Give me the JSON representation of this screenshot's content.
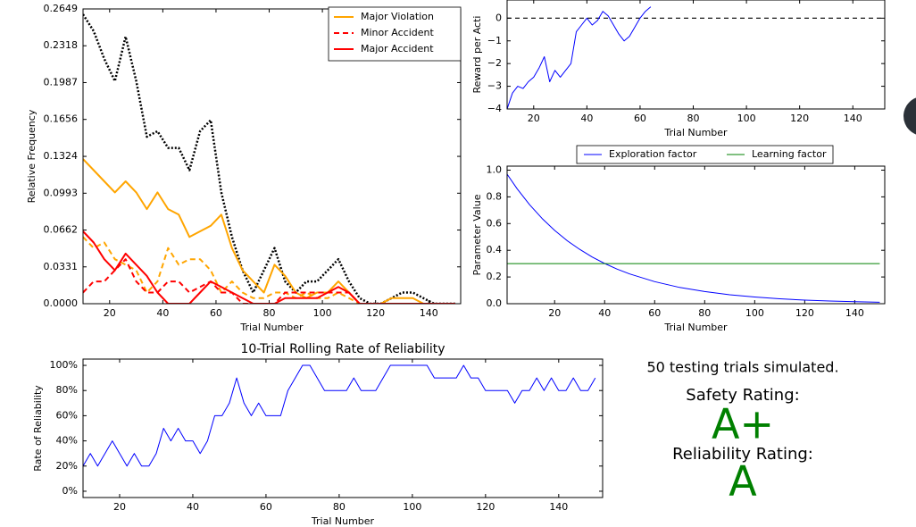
{
  "chart_data": [
    {
      "type": "line",
      "ylabel": "Relative Frequency",
      "xlabel": "Trial Number",
      "x": [
        10,
        14,
        18,
        22,
        26,
        30,
        34,
        38,
        42,
        46,
        50,
        54,
        58,
        62,
        66,
        70,
        74,
        78,
        82,
        86,
        90,
        94,
        98,
        102,
        106,
        110,
        114,
        118,
        122,
        126,
        130,
        134,
        138,
        142,
        146,
        150
      ],
      "series": [
        {
          "color": "#000000",
          "linestyle": "dotted",
          "values": [
            0.26,
            0.245,
            0.22,
            0.2,
            0.24,
            0.2,
            0.15,
            0.155,
            0.14,
            0.14,
            0.12,
            0.155,
            0.165,
            0.1,
            0.06,
            0.03,
            0.01,
            0.03,
            0.05,
            0.02,
            0.01,
            0.02,
            0.02,
            0.03,
            0.04,
            0.02,
            0.005,
            0,
            0,
            0.005,
            0.01,
            0.01,
            0.005,
            0,
            0,
            0
          ]
        },
        {
          "color": "#ffa500",
          "linestyle": "dashed",
          "values": [
            0.06,
            0.05,
            0.055,
            0.04,
            0.035,
            0.03,
            0.01,
            0.02,
            0.05,
            0.035,
            0.04,
            0.04,
            0.03,
            0.01,
            0.02,
            0.01,
            0.005,
            0.005,
            0.01,
            0.01,
            0.005,
            0.01,
            0.005,
            0.005,
            0.01,
            0.005,
            0,
            0,
            0,
            0,
            0,
            0,
            0,
            0,
            0,
            0
          ]
        },
        {
          "name": "Major Violation",
          "color": "#ffa500",
          "linestyle": "solid",
          "values": [
            0.13,
            0.12,
            0.11,
            0.1,
            0.11,
            0.1,
            0.085,
            0.1,
            0.085,
            0.08,
            0.06,
            0.065,
            0.07,
            0.08,
            0.05,
            0.03,
            0.02,
            0.01,
            0.035,
            0.025,
            0.01,
            0.005,
            0.01,
            0.01,
            0.02,
            0.01,
            0,
            0,
            0,
            0.005,
            0.005,
            0.005,
            0,
            0,
            0,
            0
          ]
        },
        {
          "name": "Minor Accident",
          "color": "#ff0000",
          "linestyle": "dashed",
          "values": [
            0.01,
            0.02,
            0.02,
            0.03,
            0.04,
            0.02,
            0.01,
            0.01,
            0.02,
            0.02,
            0.01,
            0.015,
            0.02,
            0.01,
            0.01,
            0,
            0,
            0,
            0,
            0.01,
            0.01,
            0.01,
            0.01,
            0.01,
            0.01,
            0.01,
            0,
            0,
            0,
            0,
            0,
            0,
            0,
            0,
            0,
            0
          ]
        },
        {
          "name": "Major Accident",
          "color": "#ff0000",
          "linestyle": "solid",
          "values": [
            0.065,
            0.055,
            0.04,
            0.03,
            0.045,
            0.035,
            0.025,
            0.01,
            0,
            0,
            0,
            0.01,
            0.02,
            0.015,
            0.01,
            0.005,
            0,
            0,
            0,
            0.005,
            0.005,
            0.005,
            0.005,
            0.01,
            0.015,
            0.01,
            0,
            0,
            0,
            0,
            0,
            0,
            0,
            0,
            0,
            0
          ]
        }
      ],
      "xlim": [
        10,
        152
      ],
      "ylim": [
        0,
        0.2649
      ],
      "xticks": [
        20,
        40,
        60,
        80,
        100,
        120,
        140
      ],
      "yticks": [
        {
          "value": 0,
          "label": "0.0000"
        },
        0.0331,
        0.0662,
        0.0993,
        0.1324,
        0.1656,
        0.1987,
        0.2318,
        0.2649
      ],
      "legend": "upper right"
    },
    {
      "type": "line",
      "ylabel": "Reward per Acti",
      "xlabel": "Trial Number",
      "x": [
        10,
        12,
        14,
        16,
        18,
        20,
        22,
        24,
        26,
        28,
        30,
        32,
        34,
        36,
        38,
        40,
        42,
        44,
        46,
        48,
        50,
        52,
        54,
        56,
        58,
        60,
        62,
        64
      ],
      "series": [
        {
          "color": "#0000ff",
          "linestyle": "solid",
          "values": [
            -4,
            -3.3,
            -3,
            -3.1,
            -2.8,
            -2.6,
            -2.2,
            -1.7,
            -2.8,
            -2.3,
            -2.6,
            -2.3,
            -2,
            -0.6,
            -0.3,
            0,
            -0.3,
            -0.1,
            0.3,
            0.1,
            -0.3,
            -0.7,
            -1,
            -0.8,
            -0.4,
            0,
            0.3,
            0.5
          ]
        }
      ],
      "reference_line": 0,
      "xlim": [
        10,
        152
      ],
      "ylim": [
        -4,
        0.8
      ],
      "xticks": [
        20,
        40,
        60,
        80,
        100,
        120,
        140
      ],
      "yticks": [
        {
          "value": 0,
          "label": "0"
        },
        {
          "value": -1,
          "label": "−1"
        },
        {
          "value": -2,
          "label": "−2"
        },
        {
          "value": -3,
          "label": "−3"
        },
        {
          "value": -4,
          "label": "−4"
        }
      ]
    },
    {
      "type": "line",
      "ylabel": "Parameter Value",
      "xlabel": "Trial Number",
      "x": [
        1,
        5,
        10,
        15,
        20,
        25,
        30,
        35,
        40,
        45,
        50,
        60,
        70,
        80,
        90,
        100,
        110,
        120,
        130,
        140,
        150
      ],
      "series": [
        {
          "name": "Exploration factor",
          "color": "#0000ff",
          "linestyle": "solid",
          "values": [
            0.97,
            0.861,
            0.741,
            0.638,
            0.549,
            0.472,
            0.407,
            0.35,
            0.301,
            0.259,
            0.223,
            0.165,
            0.122,
            0.091,
            0.067,
            0.05,
            0.037,
            0.027,
            0.02,
            0.015,
            0.011
          ]
        },
        {
          "name": "Learning factor",
          "color": "#008000",
          "linestyle": "solid",
          "values": [
            0.3,
            0.3,
            0.3,
            0.3,
            0.3,
            0.3,
            0.3,
            0.3,
            0.3,
            0.3,
            0.3,
            0.3,
            0.3,
            0.3,
            0.3,
            0.3,
            0.3,
            0.3,
            0.3,
            0.3,
            0.3
          ]
        }
      ],
      "xlim": [
        1,
        152
      ],
      "ylim": [
        0,
        1.03
      ],
      "xticks": [
        20,
        40,
        60,
        80,
        100,
        120,
        140
      ],
      "yticks": [
        {
          "value": 0,
          "label": "0.0"
        },
        0.2,
        0.4,
        0.6,
        0.8,
        {
          "value": 1,
          "label": "1.0"
        }
      ],
      "legend": "upper center"
    },
    {
      "type": "line",
      "title": "10-Trial Rolling Rate of Reliability",
      "ylabel": "Rate of Reliability",
      "xlabel": "Trial Number",
      "x": [
        10,
        12,
        14,
        16,
        18,
        20,
        22,
        24,
        26,
        28,
        30,
        32,
        34,
        36,
        38,
        40,
        42,
        44,
        46,
        48,
        50,
        52,
        54,
        56,
        58,
        60,
        62,
        64,
        66,
        68,
        70,
        72,
        74,
        76,
        78,
        80,
        82,
        84,
        86,
        88,
        90,
        92,
        94,
        96,
        98,
        100,
        102,
        104,
        106,
        108,
        110,
        112,
        114,
        116,
        118,
        120,
        122,
        124,
        126,
        128,
        130,
        132,
        134,
        136,
        138,
        140,
        142,
        144,
        146,
        148,
        150
      ],
      "series": [
        {
          "color": "#0000ff",
          "linestyle": "solid",
          "values": [
            20,
            30,
            20,
            30,
            40,
            30,
            20,
            30,
            20,
            20,
            30,
            50,
            40,
            50,
            40,
            40,
            30,
            40,
            60,
            60,
            70,
            90,
            70,
            60,
            70,
            60,
            60,
            60,
            80,
            90,
            100,
            100,
            90,
            80,
            80,
            80,
            80,
            90,
            80,
            80,
            80,
            90,
            100,
            100,
            100,
            100,
            100,
            100,
            90,
            90,
            90,
            90,
            100,
            90,
            90,
            80,
            80,
            80,
            80,
            70,
            80,
            80,
            90,
            80,
            90,
            80,
            80,
            90,
            80,
            80,
            90
          ]
        }
      ],
      "xlim": [
        10,
        152
      ],
      "ylim": [
        -5,
        105
      ],
      "xticks": [
        20,
        40,
        60,
        80,
        100,
        120,
        140
      ],
      "yticks": [
        {
          "value": 100,
          "label": "100%"
        },
        {
          "value": 80,
          "label": "80%"
        },
        {
          "value": 60,
          "label": "60%"
        },
        {
          "value": 40,
          "label": "40%"
        },
        {
          "value": 20,
          "label": "20%"
        },
        {
          "value": 0,
          "label": "0%"
        }
      ]
    }
  ],
  "summary": {
    "trials": "50 testing trials simulated.",
    "safety_label": "Safety Rating:",
    "safety_grade": "A+",
    "reliability_label": "Reliability Rating:",
    "reliability_grade": "A"
  }
}
